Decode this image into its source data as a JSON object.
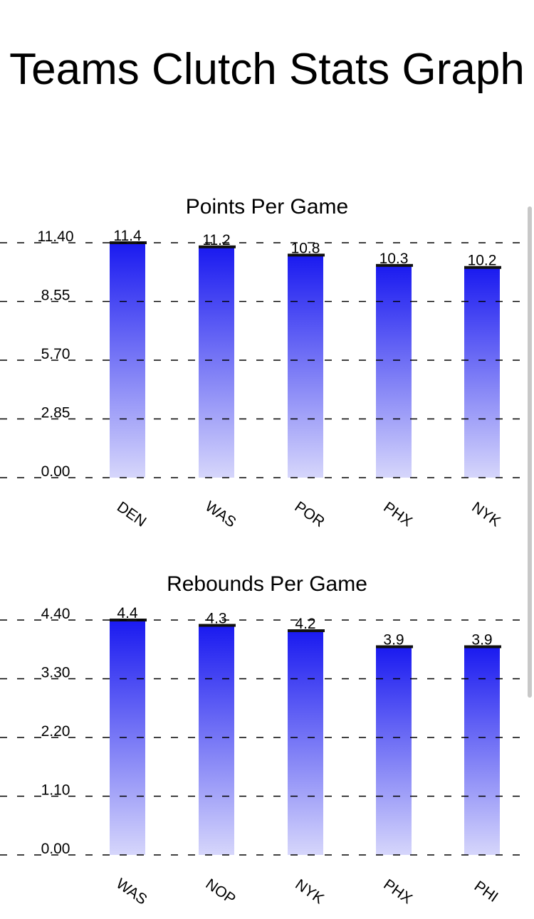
{
  "page": {
    "title": "Teams Clutch Stats Graph"
  },
  "colors": {
    "bar_top": "#1a1af0",
    "bar_bottom": "#d6d6fb",
    "bar_cap": "#111111",
    "grid": "#000000"
  },
  "chart_data": [
    {
      "type": "bar",
      "title": "Points Per Game",
      "categories": [
        "DEN",
        "WAS",
        "POR",
        "PHX",
        "NYK"
      ],
      "values": [
        11.4,
        11.2,
        10.8,
        10.3,
        10.2
      ],
      "value_labels": [
        "11.4",
        "11.2",
        "10.8",
        "10.3",
        "10.2"
      ],
      "yticks": [
        "0.00",
        "2.85",
        "5.70",
        "8.55",
        "11.40"
      ],
      "ylim": [
        0,
        11.4
      ],
      "grid": true,
      "xlabel": "",
      "ylabel": ""
    },
    {
      "type": "bar",
      "title": "Rebounds Per Game",
      "categories": [
        "WAS",
        "NOP",
        "NYK",
        "PHX",
        "PHI"
      ],
      "values": [
        4.4,
        4.3,
        4.2,
        3.9,
        3.9
      ],
      "value_labels": [
        "4.4",
        "4.3",
        "4.2",
        "3.9",
        "3.9"
      ],
      "yticks": [
        "0.00",
        "1.10",
        "2.20",
        "3.30",
        "4.40"
      ],
      "ylim": [
        0,
        4.4
      ],
      "grid": true,
      "xlabel": "",
      "ylabel": ""
    }
  ]
}
